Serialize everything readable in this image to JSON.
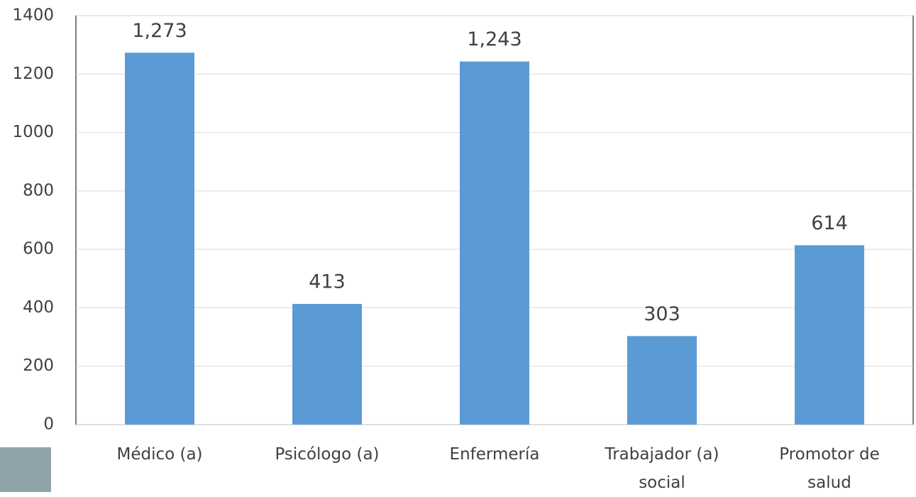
{
  "chart_data": {
    "type": "bar",
    "categories": [
      "Médico (a)",
      "Psicólogo (a)",
      "Enfermería",
      "Trabajador (a) social",
      "Promotor de salud"
    ],
    "values": [
      1273,
      413,
      1243,
      303,
      614
    ],
    "value_labels": [
      "1,273",
      "413",
      "1,243",
      "303",
      "614"
    ],
    "color": "#5b9bd5",
    "ylim": [
      0,
      1400
    ],
    "yticks": [
      0,
      200,
      400,
      600,
      800,
      1000,
      1200,
      1400
    ],
    "grid": true
  }
}
